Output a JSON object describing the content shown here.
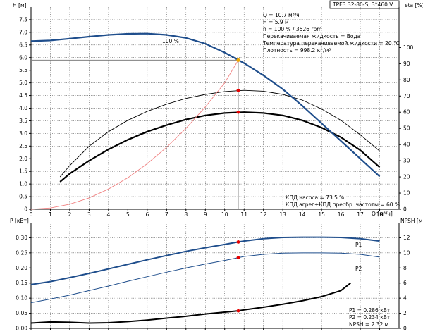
{
  "header": {
    "model": "TPE3 32-80-S, 3*460 V"
  },
  "info": {
    "lines": [
      "Q = 10.7 м³/ч",
      "H = 5.9 м",
      "n = 100 % / 3526 rpm",
      "Перекачиваемая жидкость = Вода",
      "Температура перекачиваемой жидкости = 20 °C",
      "Плотность = 998.2 кг/м³"
    ]
  },
  "efficiency_note": {
    "lines": [
      "КПД насоса = 73.5 %",
      "КПД агрег+КПД преобр. частоты = 60 %"
    ]
  },
  "power_note": {
    "lines": [
      "P1 = 0.286 кВт",
      "P2 = 0.234 кВт",
      "NPSH = 2.32 м"
    ]
  },
  "colors": {
    "head": "#1f4e8c",
    "system": "#f08080",
    "efficiency": "#000000",
    "operating_point": "#e60000",
    "duty_point_head": "#f0a800"
  },
  "chart_data": [
    {
      "type": "line",
      "name": "head-efficiency",
      "xlabel": "Q [м³/ч]",
      "ylabel_left": "H [м]",
      "ylabel_right": "eta [%]",
      "xlim": [
        0,
        19
      ],
      "ylim_left": [
        0,
        8
      ],
      "ylim_right": [
        0,
        125
      ],
      "x_ticks": [
        0,
        1,
        2,
        3,
        4,
        5,
        6,
        7,
        8,
        9,
        10,
        11,
        12,
        13,
        14,
        15,
        16,
        17,
        18
      ],
      "y_ticks_left": [
        0,
        0.5,
        1.0,
        1.5,
        2.0,
        2.5,
        3.0,
        3.5,
        4.0,
        4.5,
        5.0,
        5.5,
        6.0,
        6.5,
        7.0,
        7.5
      ],
      "y_ticks_left_labels": [
        "0",
        "0.5",
        "1.0",
        "1.5",
        "2.0",
        "2.5",
        "3.0",
        "3.5",
        "4.0",
        "4.5",
        "5.0",
        "5.5",
        "6.0",
        "6.5",
        "7.0",
        "7.5"
      ],
      "y_ticks_right": [
        0,
        10,
        20,
        30,
        40,
        50,
        60,
        70,
        80,
        90,
        100
      ],
      "curve_label": "100 %",
      "head": {
        "x": [
          0,
          1,
          2,
          3,
          4,
          5,
          6,
          7,
          8,
          9,
          10,
          11,
          12,
          13,
          14,
          15,
          16,
          17,
          18
        ],
        "y": [
          6.65,
          6.68,
          6.75,
          6.83,
          6.9,
          6.94,
          6.95,
          6.9,
          6.78,
          6.55,
          6.2,
          5.78,
          5.3,
          4.75,
          4.1,
          3.4,
          2.7,
          2.0,
          1.3
        ]
      },
      "system": {
        "x": [
          0,
          1,
          2,
          3,
          4,
          5,
          6,
          7,
          8,
          9,
          10,
          10.7
        ],
        "y": [
          0,
          0.05,
          0.2,
          0.45,
          0.8,
          1.25,
          1.8,
          2.45,
          3.2,
          4.05,
          5.0,
          5.9
        ]
      },
      "eta_unit": {
        "x": [
          1.5,
          2,
          3,
          4,
          5,
          6,
          7,
          8,
          9,
          10,
          11,
          12,
          13,
          14,
          15,
          16,
          17,
          18
        ],
        "y": [
          17,
          22,
          30,
          37,
          43,
          48,
          52,
          55.5,
          58,
          59.5,
          60,
          59.5,
          58,
          55,
          50.5,
          44.5,
          36.5,
          26
        ]
      },
      "eta_pump": {
        "x": [
          1.5,
          2,
          3,
          4,
          5,
          6,
          7,
          8,
          9,
          10,
          11,
          12,
          13,
          14,
          15,
          16,
          17,
          18
        ],
        "y": [
          20,
          27,
          39,
          48,
          55,
          60.5,
          65,
          68.5,
          71,
          72.8,
          73.5,
          73,
          71,
          67.5,
          62,
          55,
          46,
          36
        ]
      },
      "duty_point": {
        "x": 10.7,
        "h": 5.9,
        "eta_pump": 73.5,
        "eta_unit": 60
      }
    },
    {
      "type": "line",
      "name": "power-npsh",
      "xlim": [
        0,
        19
      ],
      "ylabel_left": "P [кВт]",
      "ylabel_right": "NPSH [м]",
      "ylim_left": [
        0,
        0.35
      ],
      "ylim_right": [
        0,
        14
      ],
      "y_ticks_left": [
        0,
        0.05,
        0.1,
        0.15,
        0.2,
        0.25,
        0.3
      ],
      "y_ticks_left_labels": [
        "0.00",
        "0.05",
        "0.10",
        "0.15",
        "0.20",
        "0.25",
        "0.30"
      ],
      "y_ticks_right": [
        0,
        2,
        4,
        6,
        8,
        10,
        12
      ],
      "series": [
        {
          "name": "P1",
          "x": [
            0,
            1,
            2,
            3,
            4,
            5,
            6,
            7,
            8,
            9,
            10,
            10.7,
            11,
            12,
            13,
            14,
            15,
            16,
            17,
            18
          ],
          "y": [
            0.145,
            0.155,
            0.168,
            0.182,
            0.197,
            0.212,
            0.227,
            0.241,
            0.255,
            0.267,
            0.278,
            0.286,
            0.289,
            0.297,
            0.301,
            0.302,
            0.302,
            0.301,
            0.297,
            0.289
          ]
        },
        {
          "name": "P2",
          "x": [
            0,
            1,
            2,
            3,
            4,
            5,
            6,
            7,
            8,
            9,
            10,
            10.7,
            11,
            12,
            13,
            14,
            15,
            16,
            17,
            18
          ],
          "y": [
            0.085,
            0.097,
            0.11,
            0.125,
            0.14,
            0.156,
            0.171,
            0.186,
            0.2,
            0.213,
            0.225,
            0.234,
            0.238,
            0.245,
            0.249,
            0.25,
            0.25,
            0.249,
            0.245,
            0.236
          ]
        }
      ],
      "npsh": {
        "x": [
          0,
          1,
          2,
          3,
          4,
          5,
          6,
          7,
          8,
          9,
          10,
          10.7,
          11,
          12,
          13,
          14,
          15,
          16,
          16.5
        ],
        "y": [
          0.7,
          0.85,
          0.8,
          0.7,
          0.75,
          0.9,
          1.1,
          1.35,
          1.6,
          1.9,
          2.15,
          2.32,
          2.45,
          2.8,
          3.2,
          3.65,
          4.2,
          5.0,
          6.0
        ]
      },
      "duty_point": {
        "x": 10.7,
        "p1": 0.286,
        "p2": 0.234,
        "npsh": 2.32
      }
    }
  ]
}
